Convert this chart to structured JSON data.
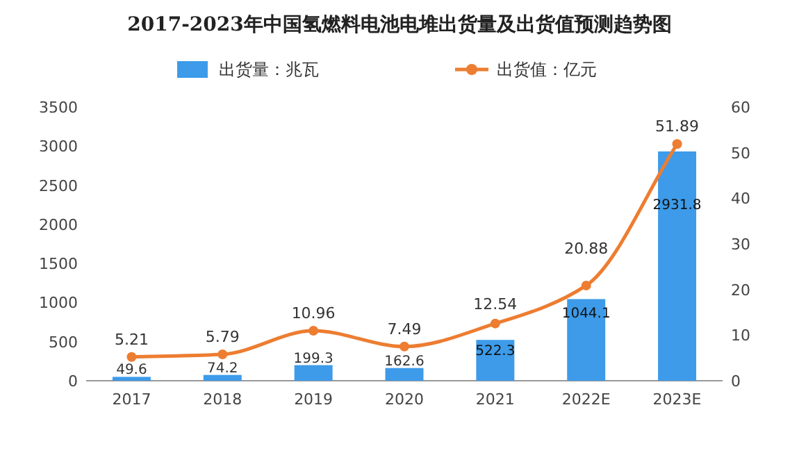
{
  "chart_data": {
    "type": "bar",
    "title": "2017-2023年中国氢燃料电池电堆出货量及出货值预测趋势图",
    "categories": [
      "2017",
      "2018",
      "2019",
      "2020",
      "2021",
      "2022E",
      "2023E"
    ],
    "series": [
      {
        "name": "出货量：兆瓦",
        "type": "bar",
        "color": "#3d9be9",
        "values": [
          49.6,
          74.2,
          199.3,
          162.6,
          522.3,
          1044.1,
          2931.8
        ]
      },
      {
        "name": "出货值：亿元",
        "type": "line",
        "axis": "y2",
        "marker": "circle",
        "color": "#ed7d31",
        "values": [
          5.21,
          5.79,
          10.96,
          7.49,
          12.54,
          20.88,
          51.89
        ]
      }
    ],
    "ylim": [
      0,
      3500
    ],
    "yticks": [
      0,
      500,
      1000,
      1500,
      2000,
      2500,
      3000,
      3500
    ],
    "y2lim": [
      0,
      60
    ],
    "y2ticks": [
      0,
      10,
      20,
      30,
      40,
      50,
      60
    ],
    "legend": "top",
    "data_labels": true
  }
}
